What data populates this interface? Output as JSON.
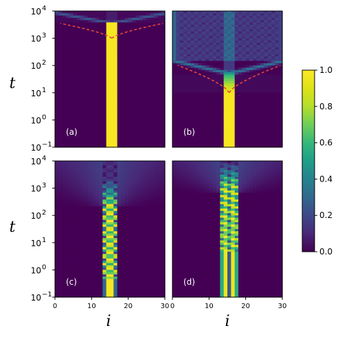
{
  "chart_data": [
    {
      "type": "heatmap",
      "panel": "(a)",
      "xlabel": "",
      "ylabel": "t",
      "xlim": [
        0,
        30
      ],
      "ylim": [
        0.1,
        10000
      ],
      "yscale": "log",
      "ytick_labels": [
        "10^-1",
        "10^0",
        "10^1",
        "10^2",
        "10^3",
        "10^4"
      ],
      "xtick_labels": [],
      "localized_sites": [
        14,
        15,
        16
      ],
      "localization_persists_until": 3500,
      "spreading_front": "red dashed lightcone, wide at t≈3500 narrowing to i≈15 at t≈1000",
      "colorscale": "viridis"
    },
    {
      "type": "heatmap",
      "panel": "(b)",
      "xlabel": "",
      "ylabel": "",
      "xlim": [
        0,
        30
      ],
      "ylim": [
        0.1,
        10000
      ],
      "yscale": "log",
      "ytick_labels": [],
      "xtick_labels": [],
      "localized_sites": [
        14,
        15,
        16
      ],
      "localization_persists_until": 10,
      "spreading_front": "red dashed lightcone, wide at t≈100 narrowing to i≈15 at t≈10",
      "colorscale": "viridis"
    },
    {
      "type": "heatmap",
      "panel": "(c)",
      "xlabel": "i",
      "ylabel": "t",
      "xlim": [
        0,
        30
      ],
      "ylim": [
        0.1,
        10000
      ],
      "yscale": "log",
      "ytick_labels": [
        "10^-1",
        "10^0",
        "10^1",
        "10^2",
        "10^3",
        "10^4"
      ],
      "xtick_labels": [
        "0",
        "10",
        "20",
        "30"
      ],
      "localized_sites": [
        13,
        14,
        15,
        16
      ],
      "oscillation_start": 0.5,
      "localization_persists_until": 300,
      "colorscale": "viridis"
    },
    {
      "type": "heatmap",
      "panel": "(d)",
      "xlabel": "i",
      "ylabel": "",
      "xlim": [
        0,
        30
      ],
      "ylim": [
        0.1,
        10000
      ],
      "yscale": "log",
      "ytick_labels": [],
      "xtick_labels": [
        "0",
        "10",
        "20",
        "30"
      ],
      "localized_sites": [
        13,
        14,
        15,
        16,
        17
      ],
      "oscillation_start": 5,
      "localization_persists_until": 2000,
      "colorscale": "viridis"
    }
  ],
  "colorbar": {
    "range": [
      0.0,
      1.0
    ],
    "ticks": [
      "0.0",
      "0.2",
      "0.4",
      "0.6",
      "0.8",
      "1.0"
    ],
    "colorscale": "viridis"
  },
  "colors": {
    "viridis_low": "#440154",
    "viridis_high": "#fde725",
    "front": "#e8463a"
  }
}
